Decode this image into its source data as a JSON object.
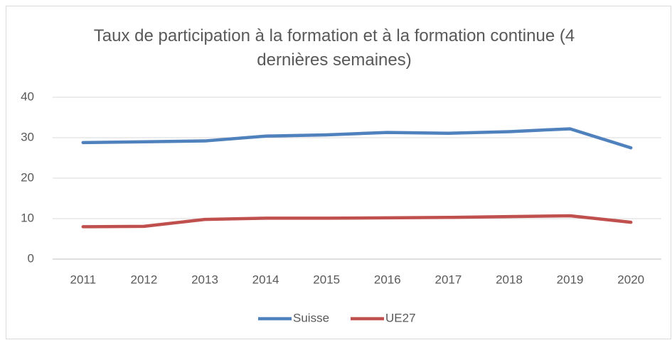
{
  "chart_data": {
    "type": "line",
    "title": "Taux de participation à la formation et à la formation continue (4 dernières semaines)",
    "categories": [
      "2011",
      "2012",
      "2013",
      "2014",
      "2015",
      "2016",
      "2017",
      "2018",
      "2019",
      "2020"
    ],
    "series": [
      {
        "name": "Suisse",
        "color": "#4f81bd",
        "values": [
          28.8,
          29.0,
          29.2,
          30.4,
          30.7,
          31.3,
          31.1,
          31.5,
          32.2,
          27.5
        ]
      },
      {
        "name": "UE27",
        "color": "#c0504d",
        "values": [
          8.0,
          8.1,
          9.8,
          10.1,
          10.1,
          10.2,
          10.3,
          10.5,
          10.7,
          9.1
        ]
      }
    ],
    "ylim": [
      0,
      40
    ],
    "yticks": [
      0,
      10,
      20,
      30,
      40
    ],
    "grid": true,
    "legend": "bottom"
  }
}
